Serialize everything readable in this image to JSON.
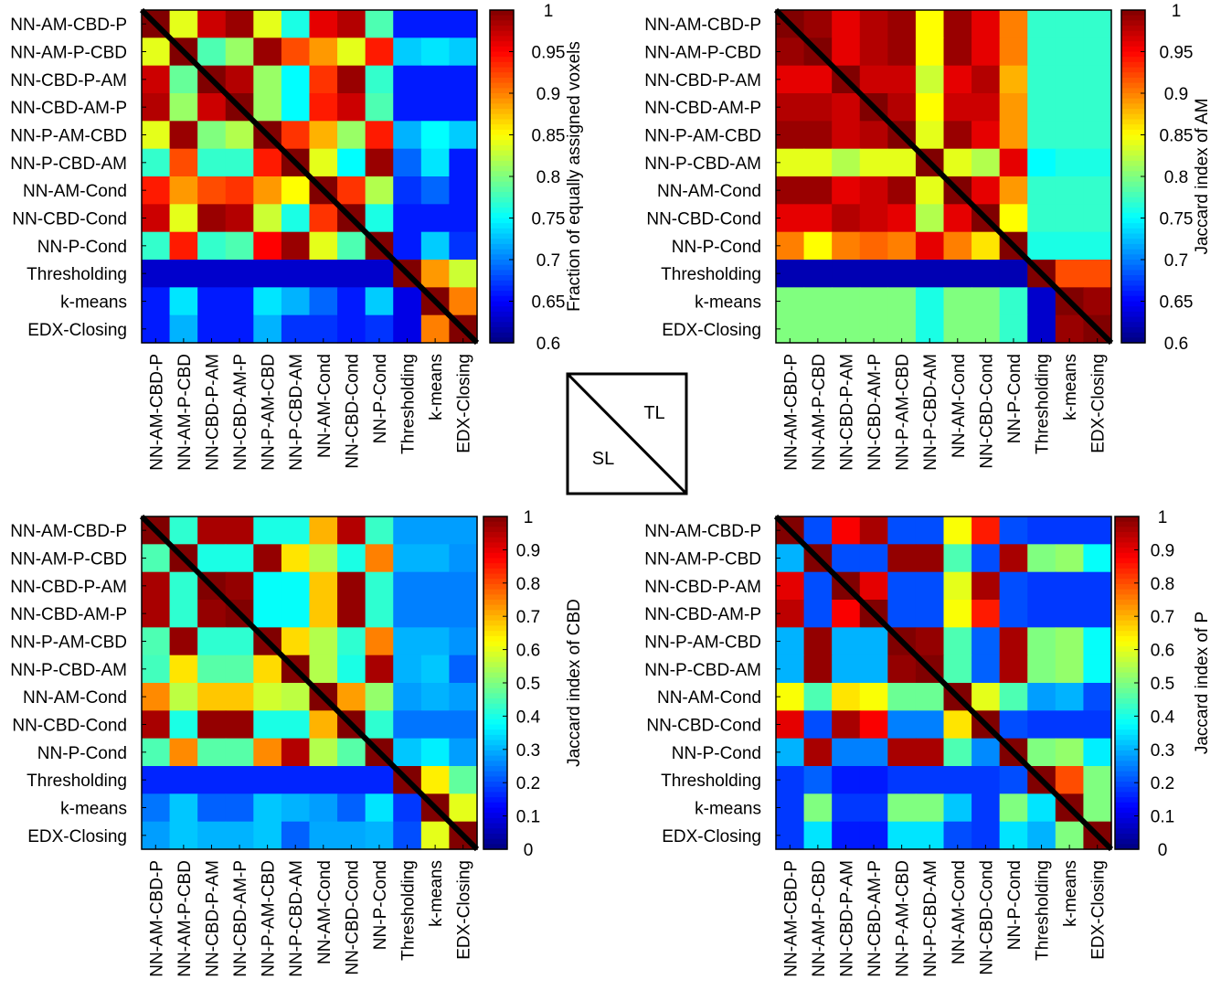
{
  "legend_glyph": {
    "upper_label": "TL",
    "lower_label": "SL"
  },
  "chart_data": [
    {
      "type": "heatmap",
      "categories": [
        "NN-AM-CBD-P",
        "NN-AM-P-CBD",
        "NN-CBD-P-AM",
        "NN-CBD-AM-P",
        "NN-P-AM-CBD",
        "NN-P-CBD-AM",
        "NN-AM-Cond",
        "NN-CBD-Cond",
        "NN-P-Cond",
        "Thresholding",
        "k-means",
        "EDX-Closing"
      ],
      "colorbar": {
        "label": "Fraction of equally assigned voxels",
        "range": [
          0.6,
          1
        ],
        "ticks": [
          "1",
          "0.95",
          "0.9",
          "0.85",
          "0.8",
          "0.75",
          "0.7",
          "0.65",
          "0.6"
        ]
      },
      "values": [
        [
          1,
          0.84,
          0.97,
          0.99,
          0.84,
          0.76,
          0.96,
          0.98,
          0.78,
          0.66,
          0.66,
          0.66
        ],
        [
          0.84,
          1,
          0.78,
          0.81,
          0.99,
          0.92,
          0.89,
          0.84,
          0.94,
          0.73,
          0.74,
          0.73
        ],
        [
          0.97,
          0.79,
          1,
          0.98,
          0.81,
          0.75,
          0.93,
          0.99,
          0.77,
          0.66,
          0.66,
          0.66
        ],
        [
          0.98,
          0.81,
          0.97,
          1,
          0.81,
          0.75,
          0.94,
          0.97,
          0.78,
          0.66,
          0.66,
          0.66
        ],
        [
          0.84,
          0.99,
          0.8,
          0.82,
          1,
          0.93,
          0.88,
          0.81,
          0.94,
          0.72,
          0.75,
          0.73
        ],
        [
          0.77,
          0.92,
          0.77,
          0.77,
          0.94,
          1,
          0.84,
          0.75,
          0.99,
          0.69,
          0.74,
          0.66
        ],
        [
          0.94,
          0.89,
          0.92,
          0.93,
          0.89,
          0.85,
          1,
          0.93,
          0.82,
          0.67,
          0.69,
          0.66
        ],
        [
          0.97,
          0.84,
          0.99,
          0.98,
          0.83,
          0.76,
          0.93,
          1,
          0.76,
          0.66,
          0.66,
          0.66
        ],
        [
          0.77,
          0.94,
          0.77,
          0.78,
          0.95,
          0.99,
          0.84,
          0.78,
          1,
          0.66,
          0.73,
          0.67
        ],
        [
          0.63,
          0.63,
          0.63,
          0.63,
          0.63,
          0.63,
          0.63,
          0.63,
          0.63,
          1,
          0.89,
          0.83
        ],
        [
          0.66,
          0.74,
          0.66,
          0.66,
          0.74,
          0.72,
          0.69,
          0.66,
          0.73,
          0.64,
          1,
          0.9
        ],
        [
          0.66,
          0.72,
          0.66,
          0.66,
          0.72,
          0.67,
          0.67,
          0.66,
          0.67,
          0.64,
          0.9,
          1
        ]
      ]
    },
    {
      "type": "heatmap",
      "categories": [
        "NN-AM-CBD-P",
        "NN-AM-P-CBD",
        "NN-CBD-P-AM",
        "NN-CBD-AM-P",
        "NN-P-AM-CBD",
        "NN-P-CBD-AM",
        "NN-AM-Cond",
        "NN-CBD-Cond",
        "NN-P-Cond",
        "Thresholding",
        "k-means",
        "EDX-Closing"
      ],
      "colorbar": {
        "label": "Jaccard index of AM",
        "range": [
          0.6,
          1
        ],
        "ticks": [
          "1",
          "0.95",
          "0.9",
          "0.85",
          "0.8",
          "0.75",
          "0.7",
          "0.65",
          "0.6"
        ]
      },
      "values": [
        [
          1,
          0.99,
          0.96,
          0.98,
          0.99,
          0.85,
          0.99,
          0.96,
          0.9,
          0.77,
          0.77,
          0.77
        ],
        [
          0.99,
          1,
          0.96,
          0.98,
          0.99,
          0.85,
          0.99,
          0.96,
          0.9,
          0.77,
          0.77,
          0.77
        ],
        [
          0.96,
          0.96,
          1,
          0.97,
          0.97,
          0.83,
          0.96,
          0.98,
          0.88,
          0.77,
          0.77,
          0.77
        ],
        [
          0.98,
          0.98,
          0.97,
          1,
          0.98,
          0.85,
          0.97,
          0.97,
          0.89,
          0.77,
          0.77,
          0.77
        ],
        [
          0.99,
          0.99,
          0.97,
          0.98,
          1,
          0.84,
          0.99,
          0.96,
          0.89,
          0.77,
          0.77,
          0.77
        ],
        [
          0.84,
          0.84,
          0.82,
          0.84,
          0.84,
          1,
          0.84,
          0.82,
          0.96,
          0.75,
          0.76,
          0.76
        ],
        [
          0.99,
          0.99,
          0.96,
          0.97,
          0.99,
          0.84,
          1,
          0.96,
          0.89,
          0.77,
          0.77,
          0.77
        ],
        [
          0.96,
          0.96,
          0.98,
          0.97,
          0.96,
          0.82,
          0.96,
          1,
          0.85,
          0.77,
          0.77,
          0.77
        ],
        [
          0.9,
          0.85,
          0.9,
          0.91,
          0.9,
          0.96,
          0.9,
          0.86,
          1,
          0.76,
          0.76,
          0.76
        ],
        [
          0.62,
          0.62,
          0.62,
          0.62,
          0.62,
          0.62,
          0.62,
          0.62,
          0.62,
          1,
          0.92,
          0.92
        ],
        [
          0.8,
          0.8,
          0.8,
          0.8,
          0.8,
          0.76,
          0.8,
          0.8,
          0.77,
          0.63,
          1,
          0.99
        ],
        [
          0.8,
          0.8,
          0.8,
          0.8,
          0.8,
          0.76,
          0.8,
          0.8,
          0.77,
          0.63,
          0.99,
          1
        ]
      ]
    },
    {
      "type": "heatmap",
      "categories": [
        "NN-AM-CBD-P",
        "NN-AM-P-CBD",
        "NN-CBD-P-AM",
        "NN-CBD-AM-P",
        "NN-P-AM-CBD",
        "NN-P-CBD-AM",
        "NN-AM-Cond",
        "NN-CBD-Cond",
        "NN-P-Cond",
        "Thresholding",
        "k-means",
        "EDX-Closing"
      ],
      "colorbar": {
        "label": "Jaccard index of CBD",
        "range": [
          0,
          1
        ],
        "ticks": [
          "1",
          "0.9",
          "0.8",
          "0.7",
          "0.6",
          "0.5",
          "0.4",
          "0.3",
          "0.2",
          "0.1",
          "0"
        ]
      },
      "values": [
        [
          1,
          0.42,
          0.96,
          0.96,
          0.4,
          0.4,
          0.7,
          0.95,
          0.43,
          0.28,
          0.28,
          0.28
        ],
        [
          0.45,
          1,
          0.4,
          0.4,
          0.98,
          0.65,
          0.55,
          0.4,
          0.75,
          0.3,
          0.3,
          0.27
        ],
        [
          0.96,
          0.42,
          1,
          0.98,
          0.38,
          0.38,
          0.68,
          0.98,
          0.42,
          0.25,
          0.25,
          0.25
        ],
        [
          0.96,
          0.42,
          0.98,
          1,
          0.38,
          0.38,
          0.68,
          0.98,
          0.42,
          0.25,
          0.25,
          0.25
        ],
        [
          0.45,
          0.98,
          0.42,
          0.42,
          1,
          0.66,
          0.55,
          0.42,
          0.75,
          0.3,
          0.3,
          0.27
        ],
        [
          0.44,
          0.65,
          0.46,
          0.46,
          0.66,
          1,
          0.55,
          0.4,
          0.96,
          0.3,
          0.32,
          0.22
        ],
        [
          0.74,
          0.56,
          0.68,
          0.68,
          0.58,
          0.56,
          1,
          0.72,
          0.52,
          0.28,
          0.3,
          0.28
        ],
        [
          0.96,
          0.4,
          0.98,
          0.98,
          0.4,
          0.4,
          0.7,
          1,
          0.42,
          0.24,
          0.24,
          0.24
        ],
        [
          0.45,
          0.74,
          0.46,
          0.46,
          0.74,
          0.95,
          0.55,
          0.46,
          1,
          0.32,
          0.36,
          0.28
        ],
        [
          0.16,
          0.16,
          0.16,
          0.16,
          0.16,
          0.16,
          0.16,
          0.16,
          0.16,
          1,
          0.64,
          0.47
        ],
        [
          0.24,
          0.32,
          0.22,
          0.22,
          0.32,
          0.3,
          0.28,
          0.22,
          0.35,
          0.18,
          1,
          0.6
        ],
        [
          0.28,
          0.32,
          0.3,
          0.3,
          0.32,
          0.22,
          0.29,
          0.29,
          0.3,
          0.2,
          0.6,
          1
        ]
      ]
    },
    {
      "type": "heatmap",
      "categories": [
        "NN-AM-CBD-P",
        "NN-AM-P-CBD",
        "NN-CBD-P-AM",
        "NN-CBD-AM-P",
        "NN-P-AM-CBD",
        "NN-P-CBD-AM",
        "NN-AM-Cond",
        "NN-CBD-Cond",
        "NN-P-Cond",
        "Thresholding",
        "k-means",
        "EDX-Closing"
      ],
      "colorbar": {
        "label": "Jaccard index of P",
        "range": [
          0,
          1
        ],
        "ticks": [
          "1",
          "0.9",
          "0.8",
          "0.7",
          "0.6",
          "0.5",
          "0.4",
          "0.3",
          "0.2",
          "0.1",
          "0"
        ]
      },
      "values": [
        [
          1,
          0.2,
          0.88,
          0.96,
          0.2,
          0.2,
          0.62,
          0.85,
          0.2,
          0.18,
          0.18,
          0.18
        ],
        [
          0.3,
          1,
          0.2,
          0.2,
          0.98,
          0.98,
          0.45,
          0.2,
          0.96,
          0.5,
          0.52,
          0.38
        ],
        [
          0.9,
          0.2,
          1,
          0.9,
          0.2,
          0.2,
          0.6,
          0.96,
          0.2,
          0.18,
          0.18,
          0.18
        ],
        [
          0.94,
          0.2,
          0.88,
          1,
          0.2,
          0.2,
          0.62,
          0.85,
          0.2,
          0.18,
          0.18,
          0.18
        ],
        [
          0.3,
          0.98,
          0.3,
          0.3,
          1,
          0.98,
          0.45,
          0.22,
          0.96,
          0.5,
          0.52,
          0.38
        ],
        [
          0.3,
          0.98,
          0.3,
          0.3,
          0.98,
          1,
          0.45,
          0.22,
          0.96,
          0.5,
          0.52,
          0.38
        ],
        [
          0.62,
          0.45,
          0.65,
          0.62,
          0.48,
          0.48,
          1,
          0.6,
          0.45,
          0.28,
          0.3,
          0.2
        ],
        [
          0.9,
          0.2,
          0.96,
          0.88,
          0.25,
          0.25,
          0.65,
          1,
          0.2,
          0.18,
          0.18,
          0.18
        ],
        [
          0.3,
          0.96,
          0.25,
          0.25,
          0.96,
          0.96,
          0.45,
          0.26,
          1,
          0.5,
          0.52,
          0.36
        ],
        [
          0.18,
          0.22,
          0.15,
          0.15,
          0.18,
          0.18,
          0.18,
          0.18,
          0.2,
          1,
          0.8,
          0.5
        ],
        [
          0.18,
          0.5,
          0.18,
          0.18,
          0.5,
          0.5,
          0.32,
          0.18,
          0.5,
          0.35,
          1,
          0.5
        ],
        [
          0.18,
          0.35,
          0.15,
          0.15,
          0.35,
          0.35,
          0.2,
          0.18,
          0.35,
          0.3,
          0.5,
          1
        ]
      ]
    }
  ]
}
